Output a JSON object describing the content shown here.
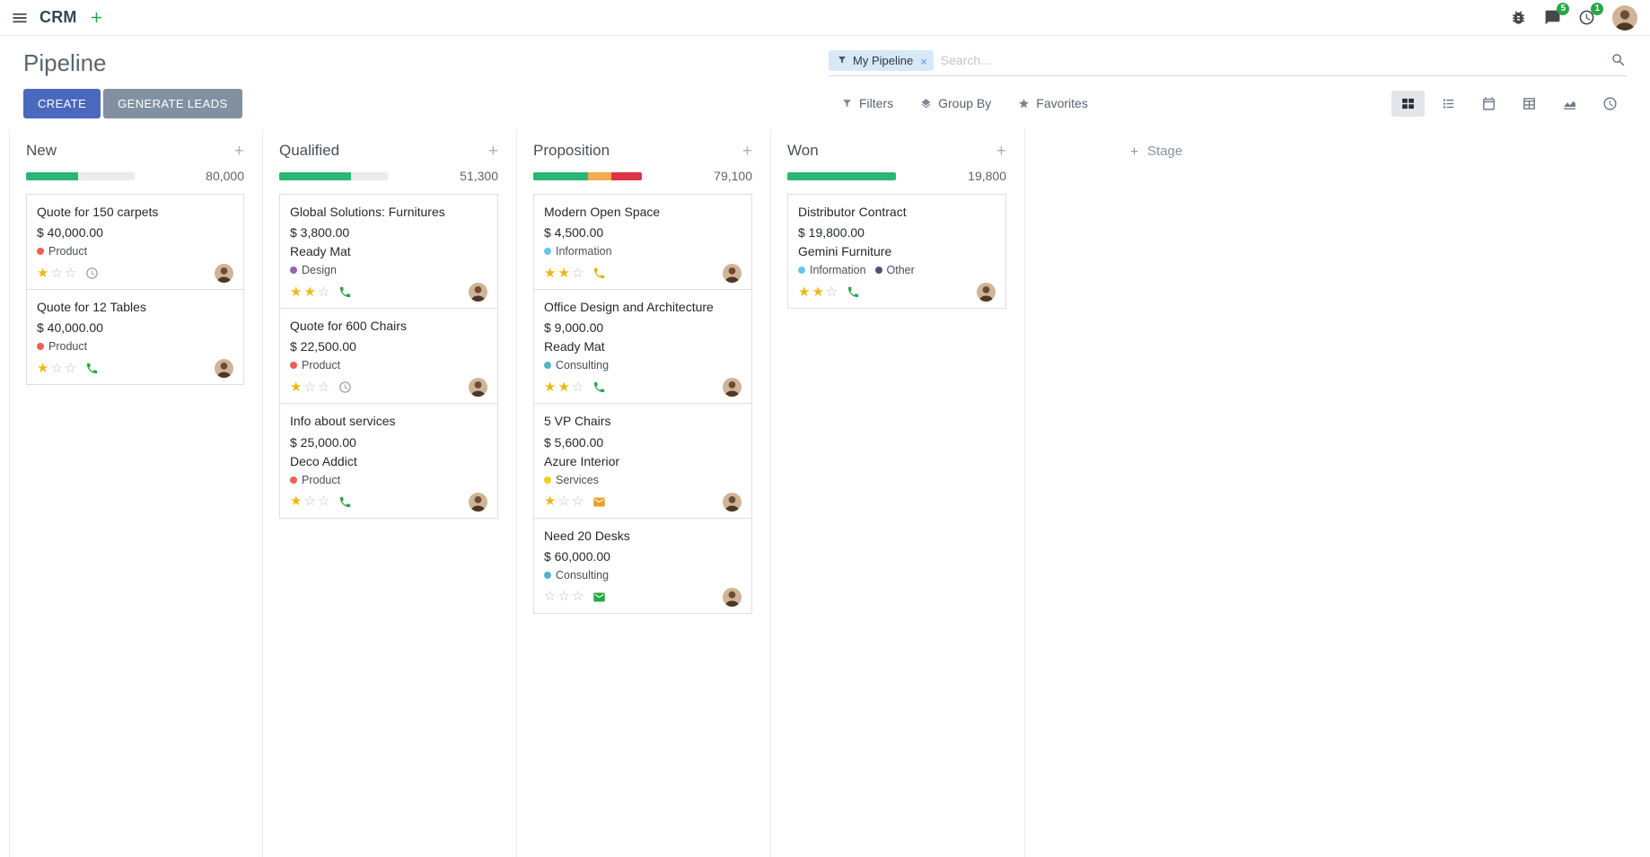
{
  "navbar": {
    "app_name": "CRM",
    "messages_badge": "5",
    "activities_badge": "1"
  },
  "control_panel": {
    "title": "Pipeline",
    "create_button": "CREATE",
    "generate_leads_button": "GENERATE LEADS",
    "search": {
      "facet_label": "My Pipeline",
      "placeholder": "Search..."
    },
    "filter_buttons": [
      {
        "label": "Filters"
      },
      {
        "label": "Group By"
      },
      {
        "label": "Favorites"
      }
    ],
    "view_switcher": [
      {
        "name": "kanban",
        "active": true
      },
      {
        "name": "list",
        "active": false
      },
      {
        "name": "calendar",
        "active": false
      },
      {
        "name": "pivot",
        "active": false
      },
      {
        "name": "graph",
        "active": false
      },
      {
        "name": "activity",
        "active": false
      }
    ]
  },
  "kanban": {
    "add_stage_label": "Stage",
    "columns": [
      {
        "name": "New",
        "amount": "80,000",
        "progress": [
          {
            "color": "#2bb673",
            "pct": 48
          }
        ],
        "cards": [
          {
            "title": "Quote for 150 carpets",
            "amount": "$ 40,000.00",
            "partner": "",
            "tags": [
              {
                "name": "Product",
                "color": "#f06050"
              }
            ],
            "stars": 1,
            "activity": {
              "type": "clock",
              "color": "#979da5"
            }
          },
          {
            "title": "Quote for 12 Tables",
            "amount": "$ 40,000.00",
            "partner": "",
            "tags": [
              {
                "name": "Product",
                "color": "#f06050"
              }
            ],
            "stars": 1,
            "activity": {
              "type": "phone",
              "color": "#28a745"
            }
          }
        ]
      },
      {
        "name": "Qualified",
        "amount": "51,300",
        "progress": [
          {
            "color": "#2bb673",
            "pct": 66
          }
        ],
        "cards": [
          {
            "title": "Global Solutions: Furnitures",
            "amount": "$ 3,800.00",
            "partner": "Ready Mat",
            "tags": [
              {
                "name": "Design",
                "color": "#9365b8"
              }
            ],
            "stars": 2,
            "activity": {
              "type": "phone",
              "color": "#28a745"
            }
          },
          {
            "title": "Quote for 600 Chairs",
            "amount": "$ 22,500.00",
            "partner": "",
            "tags": [
              {
                "name": "Product",
                "color": "#f06050"
              }
            ],
            "stars": 1,
            "activity": {
              "type": "clock",
              "color": "#979da5"
            }
          },
          {
            "title": "Info about services",
            "amount": "$ 25,000.00",
            "partner": "Deco Addict",
            "tags": [
              {
                "name": "Product",
                "color": "#f06050"
              }
            ],
            "stars": 1,
            "activity": {
              "type": "phone",
              "color": "#28a745"
            }
          }
        ]
      },
      {
        "name": "Proposition",
        "amount": "79,100",
        "progress": [
          {
            "color": "#2bb673",
            "pct": 50
          },
          {
            "color": "#f0ad4e",
            "pct": 22
          },
          {
            "color": "#dc3545",
            "pct": 28
          }
        ],
        "cards": [
          {
            "title": "Modern Open Space",
            "amount": "$ 4,500.00",
            "partner": "",
            "tags": [
              {
                "name": "Information",
                "color": "#6cc1ed"
              }
            ],
            "stars": 2,
            "activity": {
              "type": "phone",
              "color": "#e7b008"
            }
          },
          {
            "title": "Office Design and Architecture",
            "amount": "$ 9,000.00",
            "partner": "Ready Mat",
            "tags": [
              {
                "name": "Consulting",
                "color": "#4fb5c5"
              }
            ],
            "stars": 2,
            "activity": {
              "type": "phone",
              "color": "#28a745"
            }
          },
          {
            "title": "5 VP Chairs",
            "amount": "$ 5,600.00",
            "partner": "Azure Interior",
            "tags": [
              {
                "name": "Services",
                "color": "#f7cd1f"
              }
            ],
            "stars": 1,
            "activity": {
              "type": "envelope",
              "color": "#e9a028"
            }
          },
          {
            "title": "Need 20 Desks",
            "amount": "$ 60,000.00",
            "partner": "",
            "tags": [
              {
                "name": "Consulting",
                "color": "#4fb5c5"
              }
            ],
            "stars": 0,
            "activity": {
              "type": "envelope",
              "color": "#28a745"
            }
          }
        ]
      },
      {
        "name": "Won",
        "amount": "19,800",
        "progress": [
          {
            "color": "#2bb673",
            "pct": 100
          }
        ],
        "cards": [
          {
            "title": "Distributor Contract",
            "amount": "$ 19,800.00",
            "partner": "Gemini Furniture",
            "tags": [
              {
                "name": "Information",
                "color": "#6cc1ed"
              },
              {
                "name": "Other",
                "color": "#475577"
              }
            ],
            "stars": 2,
            "activity": {
              "type": "phone",
              "color": "#28a745"
            }
          }
        ]
      }
    ]
  },
  "colors": {
    "create_button": "#4a69bd",
    "generate_leads_button": "#8291a2",
    "badge": "#28a745",
    "star_filled": "#efb810",
    "progress_empty": "#e9ecef"
  }
}
